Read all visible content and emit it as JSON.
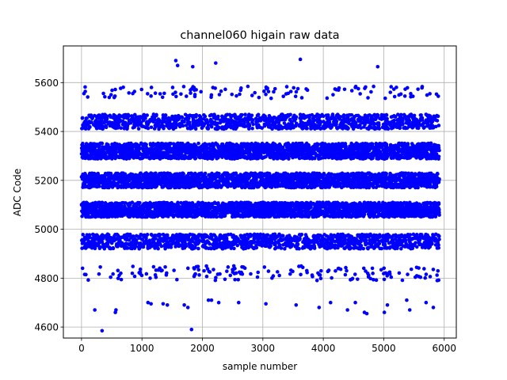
{
  "chart_data": {
    "type": "scatter",
    "title": "channel060 higain raw data",
    "xlabel": "sample number",
    "ylabel": "ADC Code",
    "xlim": [
      -300,
      6200
    ],
    "ylim": [
      4555,
      5750
    ],
    "xticks": [
      0,
      1000,
      2000,
      3000,
      4000,
      5000,
      6000
    ],
    "yticks": [
      4600,
      4800,
      5000,
      5200,
      5400,
      5600
    ],
    "grid": true,
    "legend": "none",
    "marker_color": "#0000ff",
    "n_samples": 5920,
    "sample_spacing": 1,
    "bands": [
      {
        "center": 4820,
        "halfwidth": 30,
        "density": 0.07
      },
      {
        "center": 4950,
        "halfwidth": 30,
        "density": 0.55
      },
      {
        "center": 5080,
        "halfwidth": 30,
        "density": 1.0
      },
      {
        "center": 5200,
        "halfwidth": 30,
        "density": 1.0
      },
      {
        "center": 5320,
        "halfwidth": 32,
        "density": 1.0
      },
      {
        "center": 5440,
        "halfwidth": 30,
        "density": 0.5
      },
      {
        "center": 5560,
        "halfwidth": 25,
        "density": 0.05
      }
    ],
    "outliers": [
      {
        "x": 220,
        "y": 4670
      },
      {
        "x": 340,
        "y": 4585
      },
      {
        "x": 560,
        "y": 4660
      },
      {
        "x": 570,
        "y": 4670
      },
      {
        "x": 1100,
        "y": 4700
      },
      {
        "x": 1150,
        "y": 4695
      },
      {
        "x": 1350,
        "y": 4695
      },
      {
        "x": 1420,
        "y": 4690
      },
      {
        "x": 1560,
        "y": 5690
      },
      {
        "x": 1590,
        "y": 5670
      },
      {
        "x": 1700,
        "y": 4690
      },
      {
        "x": 1760,
        "y": 4680
      },
      {
        "x": 1820,
        "y": 4590
      },
      {
        "x": 1840,
        "y": 5665
      },
      {
        "x": 2100,
        "y": 4710
      },
      {
        "x": 2150,
        "y": 4710
      },
      {
        "x": 2220,
        "y": 5680
      },
      {
        "x": 2270,
        "y": 4700
      },
      {
        "x": 2600,
        "y": 4700
      },
      {
        "x": 3050,
        "y": 4695
      },
      {
        "x": 3550,
        "y": 4690
      },
      {
        "x": 3620,
        "y": 5695
      },
      {
        "x": 3930,
        "y": 4680
      },
      {
        "x": 4120,
        "y": 4700
      },
      {
        "x": 4400,
        "y": 4670
      },
      {
        "x": 4530,
        "y": 4700
      },
      {
        "x": 4680,
        "y": 4660
      },
      {
        "x": 4720,
        "y": 4655
      },
      {
        "x": 4900,
        "y": 5665
      },
      {
        "x": 5010,
        "y": 4660
      },
      {
        "x": 5060,
        "y": 4690
      },
      {
        "x": 5380,
        "y": 4710
      },
      {
        "x": 5430,
        "y": 4670
      },
      {
        "x": 5700,
        "y": 4700
      },
      {
        "x": 5820,
        "y": 4680
      }
    ]
  }
}
